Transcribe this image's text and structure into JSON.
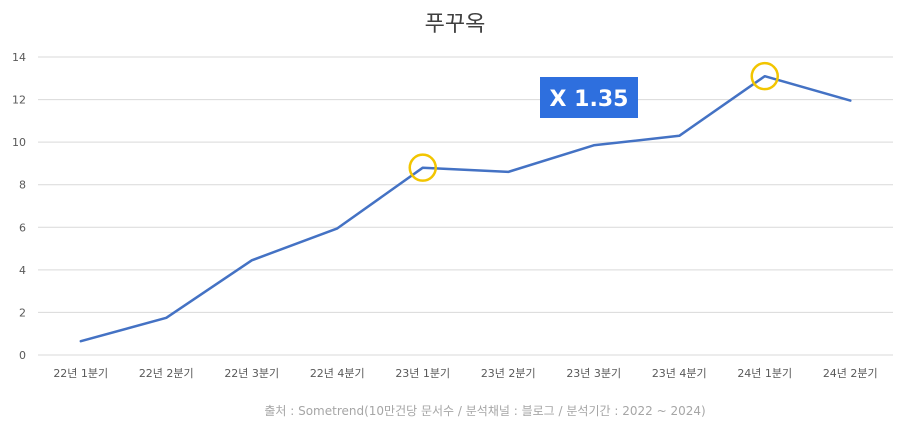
{
  "chart_data": {
    "type": "line",
    "title": "푸꾸옥",
    "categories": [
      "22년 1분기",
      "22년 2분기",
      "22년 3분기",
      "22년 4분기",
      "23년 1분기",
      "23년 2분기",
      "23년 3분기",
      "23년 4분기",
      "24년 1분기",
      "24년 2분기"
    ],
    "series": [
      {
        "values": [
          0.65,
          1.75,
          4.45,
          5.95,
          8.8,
          8.6,
          9.85,
          10.3,
          13.1,
          11.95
        ]
      }
    ],
    "ylim": [
      0,
      14
    ],
    "yticks": [
      0,
      2,
      4,
      6,
      8,
      10,
      12,
      14
    ],
    "grid": true,
    "highlight_indices": [
      4,
      8
    ],
    "annotation": "X 1.35",
    "source": "출처 : Sometrend(10만건당 문서수 / 분석채널 : 블로그 / 분석기간 : 2022 ~ 2024)"
  },
  "colors": {
    "line": "#4472c4",
    "highlight": "#f2c500",
    "badge": "#2e6fde"
  }
}
